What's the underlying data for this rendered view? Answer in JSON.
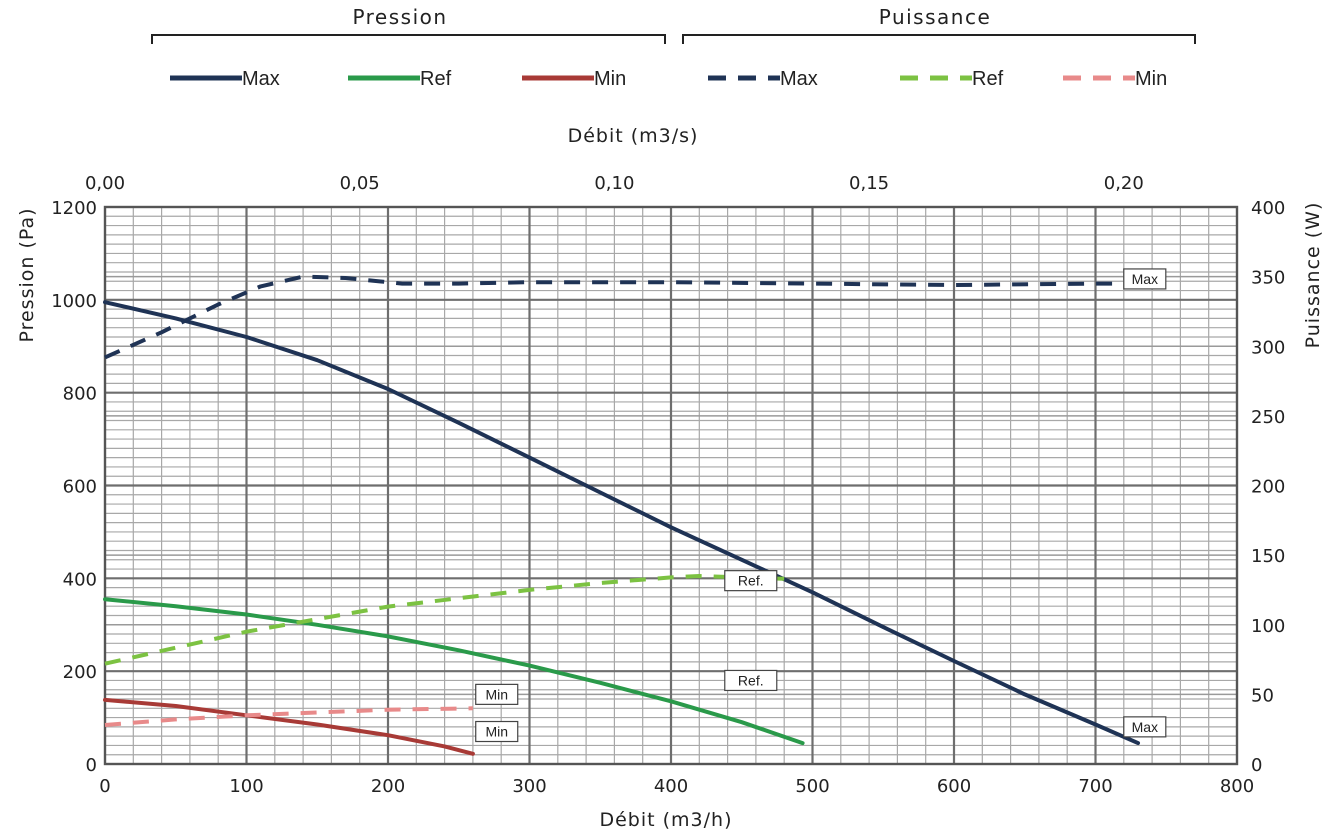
{
  "chart_data": {
    "type": "line",
    "groups": [
      {
        "name": "Pression"
      },
      {
        "name": "Puissance"
      }
    ],
    "xlabel_bottom": "Débit (m3/h)",
    "xlabel_top": "Débit (m3/s)",
    "ylabel_left": "Pression (Pa)",
    "ylabel_right": "Puissance (W)",
    "x_ticks": [
      0,
      100,
      200,
      300,
      400,
      500,
      600,
      700,
      800
    ],
    "x_tick_labels": [
      "0",
      "100",
      "200",
      "300",
      "400",
      "500",
      "600",
      "700",
      "800"
    ],
    "x2_tick_labels": [
      "0,00",
      "0,05",
      "0,10",
      "0,15",
      "0,20"
    ],
    "x2_ticks": [
      0,
      0.05,
      0.1,
      0.15,
      0.2
    ],
    "y_ticks": [
      0,
      200,
      400,
      600,
      800,
      1000,
      1200
    ],
    "y_tick_labels": [
      "0",
      "200",
      "400",
      "600",
      "800",
      "1000",
      "1200"
    ],
    "y2_ticks": [
      0,
      50,
      100,
      150,
      200,
      250,
      300,
      350,
      400
    ],
    "y2_tick_labels": [
      "0",
      "50",
      "100",
      "150",
      "200",
      "250",
      "300",
      "350",
      "400"
    ],
    "xlim": [
      0,
      800
    ],
    "ylim": [
      0,
      1200
    ],
    "y2lim": [
      0,
      400
    ],
    "grid": true,
    "series": [
      {
        "name": "Max",
        "group": "Pression",
        "axis": "left",
        "style": "solid",
        "color": "#1f3355",
        "x": [
          0,
          50,
          100,
          150,
          200,
          250,
          300,
          350,
          400,
          450,
          500,
          550,
          600,
          650,
          700,
          730
        ],
        "y": [
          995,
          960,
          920,
          870,
          808,
          735,
          660,
          585,
          510,
          440,
          370,
          295,
          222,
          150,
          85,
          45
        ]
      },
      {
        "name": "Ref",
        "group": "Pression",
        "axis": "left",
        "style": "solid",
        "color": "#2a9a4a",
        "x": [
          0,
          50,
          100,
          150,
          200,
          250,
          300,
          350,
          400,
          450,
          493
        ],
        "y": [
          355,
          340,
          322,
          300,
          275,
          245,
          212,
          175,
          135,
          90,
          45
        ]
      },
      {
        "name": "Min",
        "group": "Pression",
        "axis": "left",
        "style": "solid",
        "color": "#a83a36",
        "x": [
          0,
          50,
          100,
          150,
          200,
          240,
          260
        ],
        "y": [
          138,
          125,
          105,
          85,
          62,
          38,
          22
        ]
      },
      {
        "name": "Max",
        "group": "Puissance",
        "axis": "right",
        "style": "dashed",
        "color": "#1f3355",
        "x": [
          0,
          40,
          80,
          110,
          140,
          170,
          210,
          250,
          300,
          400,
          500,
          600,
          700,
          730
        ],
        "y": [
          292,
          310,
          330,
          343,
          350,
          349,
          345,
          345,
          346,
          346,
          345,
          344,
          345,
          345
        ]
      },
      {
        "name": "Ref",
        "group": "Puissance",
        "axis": "right",
        "style": "dashed",
        "color": "#7cc242",
        "x": [
          0,
          100,
          200,
          300,
          350,
          400,
          420,
          450,
          480
        ],
        "y": [
          72,
          95,
          113,
          125,
          130,
          134,
          135,
          134,
          133
        ]
      },
      {
        "name": "Min",
        "group": "Puissance",
        "axis": "right",
        "style": "dashed",
        "color": "#e88a8a",
        "x": [
          0,
          50,
          100,
          150,
          200,
          260
        ],
        "y": [
          28,
          32,
          35,
          37,
          39,
          40
        ]
      }
    ],
    "annotations": [
      {
        "text": "Max",
        "x": 720,
        "y": 1045,
        "axis": "left"
      },
      {
        "text": "Max",
        "x": 720,
        "y": 80,
        "axis": "left"
      },
      {
        "text": "Ref.",
        "x": 438,
        "y": 395,
        "axis": "left"
      },
      {
        "text": "Ref.",
        "x": 438,
        "y": 180,
        "axis": "left"
      },
      {
        "text": "Min",
        "x": 262,
        "y": 150,
        "axis": "left"
      },
      {
        "text": "Min",
        "x": 262,
        "y": 70,
        "axis": "left"
      }
    ]
  }
}
